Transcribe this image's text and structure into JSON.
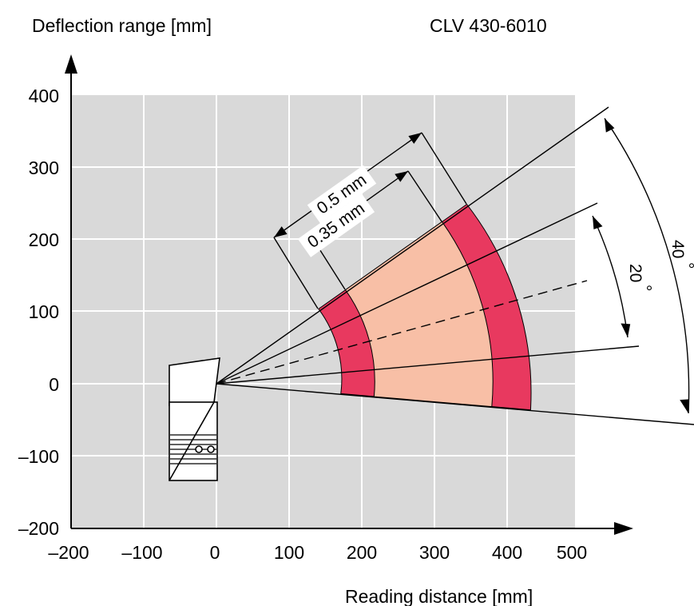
{
  "title": "CLV 430-6010",
  "y_axis_label": "Deflection range [mm]",
  "x_axis_label": "Reading distance [mm]",
  "x_ticks": [
    "–200",
    "–100",
    "0",
    "100",
    "200",
    "300",
    "400",
    "500"
  ],
  "y_ticks": [
    "400",
    "300",
    "200",
    "100",
    "0",
    "–100",
    "–200"
  ],
  "annotations": {
    "resolution_outer": "0.5 mm",
    "resolution_inner": "0.35 mm",
    "angle_inner": "20",
    "angle_outer": "40",
    "degree_symbol": "°"
  },
  "reading_fields": [
    {
      "resolution": "0.5 mm",
      "range_mm": [
        170,
        430
      ]
    },
    {
      "resolution": "0.35 mm",
      "range_mm": [
        200,
        380
      ]
    }
  ],
  "colors": {
    "plot_background": "#d9d9d9",
    "grid": "#ffffff",
    "field_0_5mm": "#e8395f",
    "field_0_35mm": "#f8bfa6"
  }
}
